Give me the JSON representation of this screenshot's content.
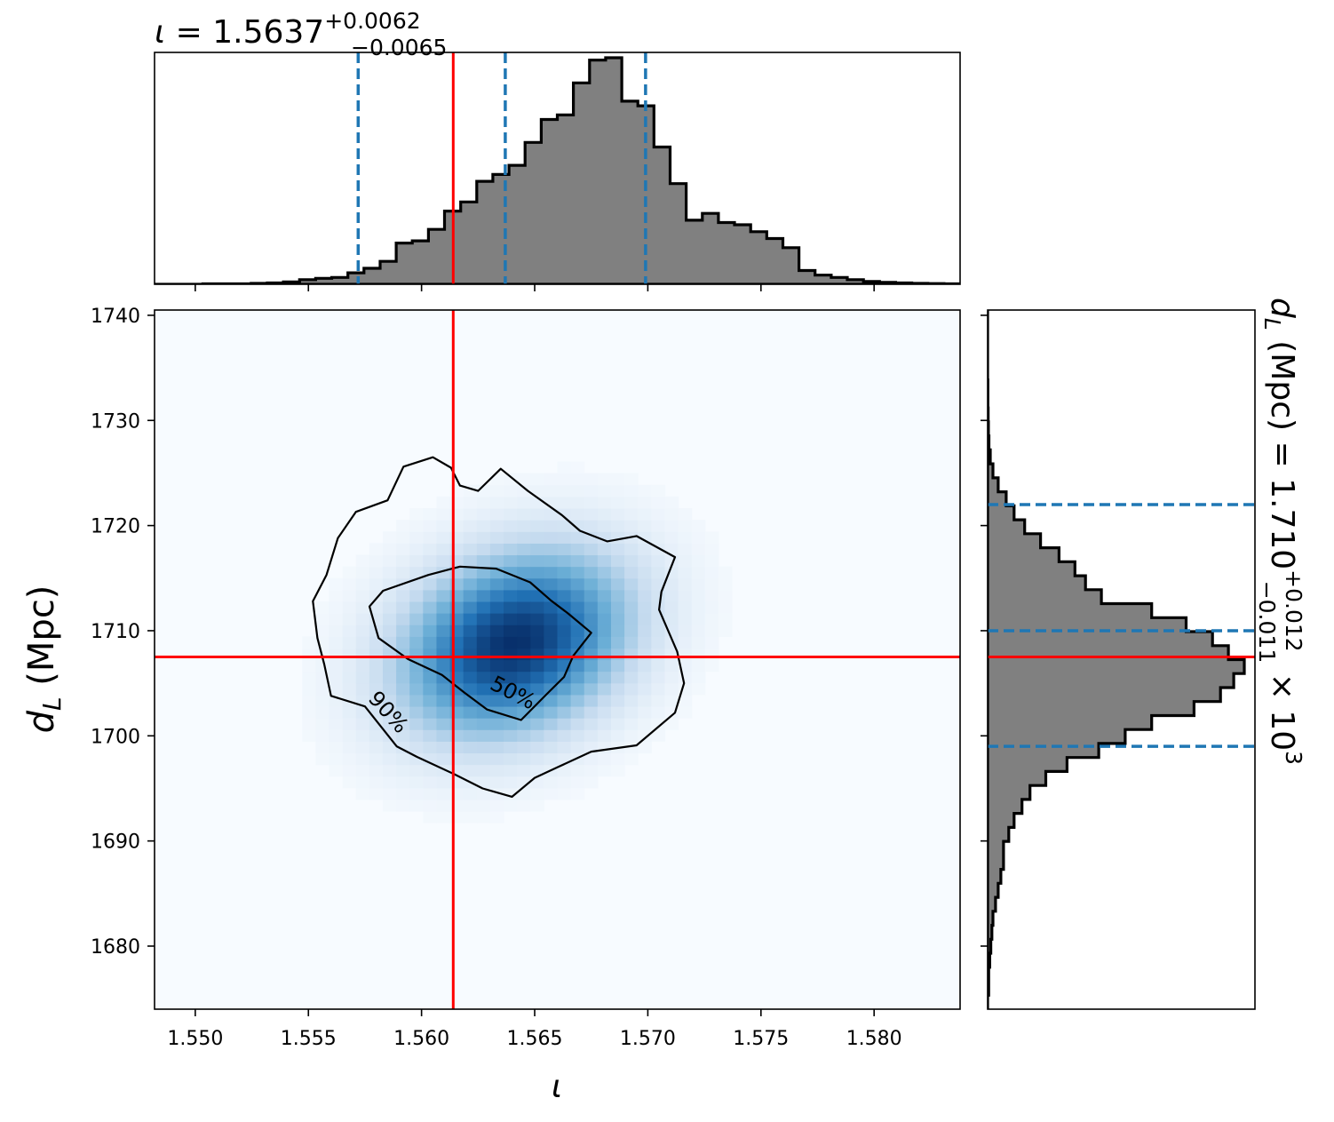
{
  "chart_data": {
    "type": "corner",
    "colors": {
      "histogram_fill": "#808080",
      "histogram_edge": "#000000",
      "quantile_line": "#1f77b4",
      "truth_line": "#ff0000",
      "density_colormap": [
        "#f7fbff",
        "#c6dbef",
        "#6baed6",
        "#2171b5",
        "#08306b"
      ]
    },
    "parameters": [
      {
        "name": "iota",
        "axis_label": "ι",
        "range": [
          1.5482,
          1.5838
        ],
        "ticks": [
          1.55,
          1.555,
          1.56,
          1.565,
          1.57,
          1.575,
          1.58
        ],
        "tick_labels": [
          "1.550",
          "1.555",
          "1.560",
          "1.565",
          "1.570",
          "1.575",
          "1.580"
        ],
        "title": {
          "symbol": "ι",
          "median": "1.5637",
          "plus": "+0.0062",
          "minus": "−0.0065"
        },
        "truth": 1.5614,
        "quantiles": [
          1.5572,
          1.5637,
          1.5699
        ]
      },
      {
        "name": "d_L",
        "axis_label_main": "d",
        "axis_label_sub": "L",
        "axis_label_unit": "(Mpc)",
        "range": [
          1674.0,
          1740.5
        ],
        "ticks": [
          1680,
          1690,
          1700,
          1710,
          1720,
          1730,
          1740
        ],
        "tick_labels": [
          "1680",
          "1690",
          "1700",
          "1710",
          "1720",
          "1730",
          "1740"
        ],
        "title": {
          "symbol": "d",
          "sub": "L",
          "unit": "(Mpc)",
          "median": "1.710",
          "plus": "+0.012",
          "minus": "−0.011",
          "scale": "× 10",
          "exponent": "3"
        },
        "truth": 1707.5,
        "quantiles": [
          1699.0,
          1710.0,
          1722.0
        ]
      }
    ],
    "hist_iota": {
      "edges_start": 1.5482,
      "bin_width": 0.000712,
      "counts": [
        0,
        0,
        0,
        0.002,
        0.002,
        0.002,
        0.004,
        0.006,
        0.01,
        0.02,
        0.026,
        0.03,
        0.05,
        0.07,
        0.1,
        0.18,
        0.19,
        0.24,
        0.32,
        0.36,
        0.45,
        0.48,
        0.52,
        0.62,
        0.72,
        0.74,
        0.88,
        0.98,
        0.99,
        0.8,
        0.78,
        0.6,
        0.44,
        0.28,
        0.31,
        0.27,
        0.26,
        0.23,
        0.2,
        0.16,
        0.06,
        0.04,
        0.03,
        0.02,
        0.012,
        0.008,
        0.006,
        0.004,
        0.003,
        0.002,
        0.001
      ]
    },
    "hist_dL": {
      "edges_start": 1674.0,
      "bin_width": 1.33,
      "counts": [
        0,
        0.004,
        0.004,
        0.008,
        0.012,
        0.016,
        0.02,
        0.03,
        0.04,
        0.05,
        0.06,
        0.06,
        0.08,
        0.1,
        0.13,
        0.16,
        0.22,
        0.3,
        0.42,
        0.52,
        0.62,
        0.78,
        0.88,
        0.93,
        0.97,
        0.91,
        0.85,
        0.75,
        0.62,
        0.43,
        0.37,
        0.33,
        0.27,
        0.2,
        0.14,
        0.1,
        0.07,
        0.04,
        0.02,
        0.01,
        0.005,
        0.003,
        0.002,
        0.001,
        0.001,
        0,
        0,
        0,
        0,
        0
      ]
    },
    "density": {
      "center": [
        1.5641,
        1708.8
      ],
      "sigma": [
        0.0032,
        5.6
      ]
    },
    "contours": [
      {
        "label": "50%",
        "points": [
          [
            1.5577,
            1712.3
          ],
          [
            1.5583,
            1713.8
          ],
          [
            1.5603,
            1715.3
          ],
          [
            1.5617,
            1716.1
          ],
          [
            1.5633,
            1715.9
          ],
          [
            1.5648,
            1714.6
          ],
          [
            1.5657,
            1712.9
          ],
          [
            1.5665,
            1711.6
          ],
          [
            1.5675,
            1709.8
          ],
          [
            1.5667,
            1707.6
          ],
          [
            1.5663,
            1705.6
          ],
          [
            1.5655,
            1703.9
          ],
          [
            1.5644,
            1701.5
          ],
          [
            1.5629,
            1702.5
          ],
          [
            1.5619,
            1704.1
          ],
          [
            1.5609,
            1705.8
          ],
          [
            1.5594,
            1707.3
          ],
          [
            1.5581,
            1709.3
          ],
          [
            1.5577,
            1712.3
          ]
        ]
      },
      {
        "label": "90%",
        "points": [
          [
            1.5552,
            1712.8
          ],
          [
            1.5558,
            1715.3
          ],
          [
            1.5563,
            1718.8
          ],
          [
            1.5571,
            1721.3
          ],
          [
            1.5585,
            1722.4
          ],
          [
            1.5592,
            1725.6
          ],
          [
            1.5605,
            1726.5
          ],
          [
            1.5613,
            1725.5
          ],
          [
            1.5617,
            1723.8
          ],
          [
            1.5625,
            1723.3
          ],
          [
            1.5635,
            1725.4
          ],
          [
            1.5647,
            1723.3
          ],
          [
            1.5662,
            1721.0
          ],
          [
            1.567,
            1719.5
          ],
          [
            1.5682,
            1718.5
          ],
          [
            1.5695,
            1719.0
          ],
          [
            1.5712,
            1717.0
          ],
          [
            1.5706,
            1713.7
          ],
          [
            1.5705,
            1712.0
          ],
          [
            1.5713,
            1708.0
          ],
          [
            1.5716,
            1705.0
          ],
          [
            1.5712,
            1702.2
          ],
          [
            1.5695,
            1699.1
          ],
          [
            1.5675,
            1698.5
          ],
          [
            1.566,
            1697.0
          ],
          [
            1.565,
            1696.0
          ],
          [
            1.564,
            1694.2
          ],
          [
            1.5627,
            1695.0
          ],
          [
            1.5614,
            1696.4
          ],
          [
            1.5598,
            1698.0
          ],
          [
            1.5589,
            1699.0
          ],
          [
            1.5575,
            1702.8
          ],
          [
            1.556,
            1703.8
          ],
          [
            1.5557,
            1706.8
          ],
          [
            1.5554,
            1709.3
          ],
          [
            1.5552,
            1712.8
          ]
        ]
      }
    ]
  }
}
